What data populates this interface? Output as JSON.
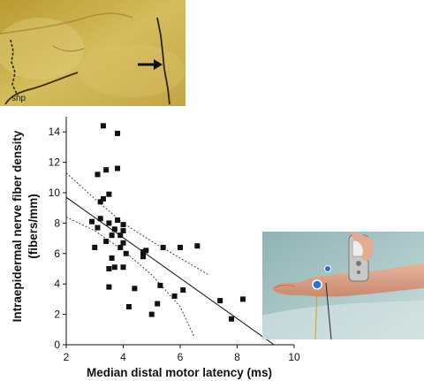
{
  "figure": {
    "micrograph": {
      "annotation": "snp"
    },
    "photo": {
      "description_icon": "wrist-device-photo"
    }
  },
  "chart_data": {
    "type": "scatter",
    "title": "",
    "xlabel": "Median distal motor latency (ms)",
    "ylabel_line1": "Intraepidermal nerve fiber density",
    "ylabel_line2": "(fibers/mm)",
    "xlim": [
      2,
      10
    ],
    "ylim": [
      0,
      15
    ],
    "xticks": [
      "2",
      "4",
      "6",
      "8",
      "10"
    ],
    "yticks": [
      "0",
      "2",
      "4",
      "6",
      "8",
      "10",
      "12",
      "14"
    ],
    "grid": false,
    "points": [
      [
        2.9,
        8.1
      ],
      [
        3.0,
        6.4
      ],
      [
        3.1,
        11.2
      ],
      [
        3.1,
        7.7
      ],
      [
        3.2,
        8.3
      ],
      [
        3.2,
        9.4
      ],
      [
        3.3,
        9.6
      ],
      [
        3.3,
        14.4
      ],
      [
        3.4,
        11.5
      ],
      [
        3.4,
        6.8
      ],
      [
        3.5,
        5.0
      ],
      [
        3.5,
        3.8
      ],
      [
        3.5,
        8.0
      ],
      [
        3.5,
        9.9
      ],
      [
        3.6,
        5.7
      ],
      [
        3.6,
        7.2
      ],
      [
        3.7,
        5.1
      ],
      [
        3.7,
        7.6
      ],
      [
        3.8,
        11.6
      ],
      [
        3.8,
        13.9
      ],
      [
        3.8,
        8.2
      ],
      [
        3.9,
        7.2
      ],
      [
        3.9,
        6.4
      ],
      [
        4.0,
        5.1
      ],
      [
        4.0,
        6.7
      ],
      [
        4.0,
        7.9
      ],
      [
        4.0,
        7.5
      ],
      [
        4.1,
        6.0
      ],
      [
        4.2,
        2.5
      ],
      [
        4.4,
        3.7
      ],
      [
        4.7,
        6.1
      ],
      [
        4.7,
        5.8
      ],
      [
        4.8,
        6.2
      ],
      [
        5.0,
        2.0
      ],
      [
        5.2,
        2.7
      ],
      [
        5.3,
        3.9
      ],
      [
        5.4,
        6.4
      ],
      [
        5.8,
        3.2
      ],
      [
        6.0,
        6.4
      ],
      [
        6.1,
        3.6
      ],
      [
        6.6,
        6.5
      ],
      [
        7.4,
        2.9
      ],
      [
        7.8,
        1.7
      ],
      [
        8.2,
        3.0
      ]
    ],
    "regression": {
      "slope": -1.33,
      "intercept": 12.36
    },
    "ci_upper": [
      [
        2.0,
        11.3
      ],
      [
        3.0,
        9.6
      ],
      [
        4.0,
        8.0
      ],
      [
        5.0,
        6.8
      ],
      [
        6.0,
        5.7
      ],
      [
        7.0,
        4.6
      ]
    ],
    "ci_lower": [
      [
        2.0,
        8.4
      ],
      [
        3.0,
        7.5
      ],
      [
        4.0,
        6.2
      ],
      [
        5.0,
        4.6
      ],
      [
        6.0,
        2.5
      ],
      [
        6.5,
        0.5
      ]
    ],
    "colors": {
      "points": "#111111",
      "line": "#111111",
      "axes": "#111111"
    }
  }
}
